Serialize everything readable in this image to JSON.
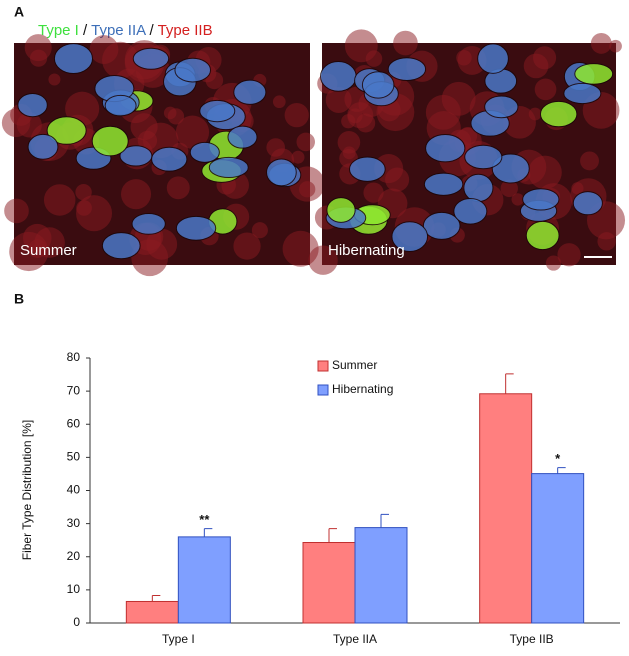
{
  "panel_a": {
    "label": "A",
    "legend": [
      {
        "text": "Type I",
        "color": "#3ee03e"
      },
      {
        "text": "Type IIA",
        "color": "#3d6fb8"
      },
      {
        "text": "Type IIB",
        "color": "#d42020"
      }
    ],
    "separator": "/",
    "images": [
      "Summer",
      "Hibernating"
    ]
  },
  "chart_data": {
    "type": "bar",
    "panel_label": "B",
    "ylabel": "Fiber Type Distribution [%]",
    "categories": [
      "Type I",
      "Type IIA",
      "Type IIB"
    ],
    "series": [
      {
        "name": "Summer",
        "color": "#ff7f7f",
        "edge": "#c03030",
        "values": [
          6.5,
          24.3,
          69.2
        ],
        "errors": [
          1.8,
          4.2,
          6.0
        ]
      },
      {
        "name": "Hibernating",
        "color": "#7f9fff",
        "edge": "#3050c0",
        "values": [
          26.0,
          28.8,
          45.1
        ],
        "errors": [
          2.5,
          4.0,
          1.8
        ]
      }
    ],
    "annotations": [
      {
        "text": "**",
        "series": 1,
        "category": 0
      },
      {
        "text": "*",
        "series": 1,
        "category": 2
      }
    ],
    "ylim": [
      0,
      80
    ],
    "yticks": [
      0,
      10,
      20,
      30,
      40,
      50,
      60,
      70,
      80
    ]
  }
}
